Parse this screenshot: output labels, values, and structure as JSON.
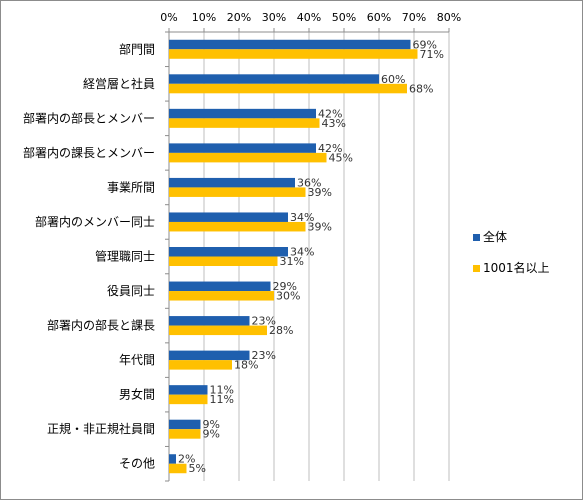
{
  "chart_data": {
    "type": "bar",
    "orientation": "horizontal",
    "categories": [
      "部門間",
      "経営層と社員",
      "部署内の部長とメンバー",
      "部署内の課長とメンバー",
      "事業所間",
      "部署内のメンバー同士",
      "管理職同士",
      "役員同士",
      "部署内の部長と課長",
      "年代間",
      "男女間",
      "正規・非正規社員間",
      "その他"
    ],
    "series": [
      {
        "name": "全体",
        "color": "#1f5fae",
        "values": [
          69,
          60,
          42,
          42,
          36,
          34,
          34,
          29,
          23,
          23,
          11,
          9,
          2
        ]
      },
      {
        "name": "1001名以上",
        "color": "#ffc000",
        "values": [
          71,
          68,
          43,
          45,
          39,
          39,
          31,
          30,
          28,
          18,
          11,
          9,
          5
        ]
      }
    ],
    "xlim": [
      0,
      80
    ],
    "xticks": [
      0,
      10,
      20,
      30,
      40,
      50,
      60,
      70,
      80
    ],
    "tick_suffix": "%",
    "value_suffix": "%",
    "axis_position": "top",
    "grid": true,
    "legend_position": "right"
  }
}
